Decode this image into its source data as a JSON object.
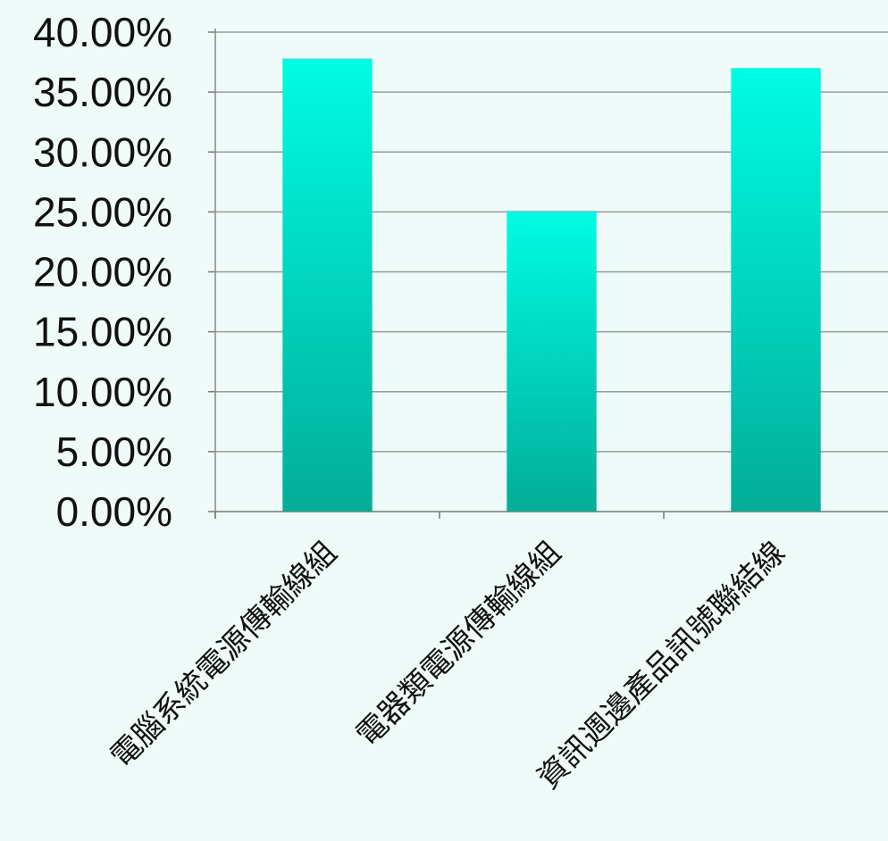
{
  "chart_data": {
    "type": "bar",
    "categories": [
      "電腦系統電源傳輸線組",
      "電器類電源傳輸線組",
      "資訊週邊產品訊號聯結線"
    ],
    "values": [
      37.8,
      25.1,
      37.0
    ],
    "ylim": [
      0,
      40
    ],
    "yticks": [
      "0.00%",
      "5.00%",
      "10.00%",
      "15.00%",
      "20.00%",
      "25.00%",
      "30.00%",
      "35.00%",
      "40.00%"
    ],
    "grid": true,
    "legend": "none",
    "colors": {
      "bar_top": "#00fce4",
      "bar_bottom": "#02ad98",
      "grid": "#9a9a9a",
      "background": "#eefbf9"
    }
  }
}
